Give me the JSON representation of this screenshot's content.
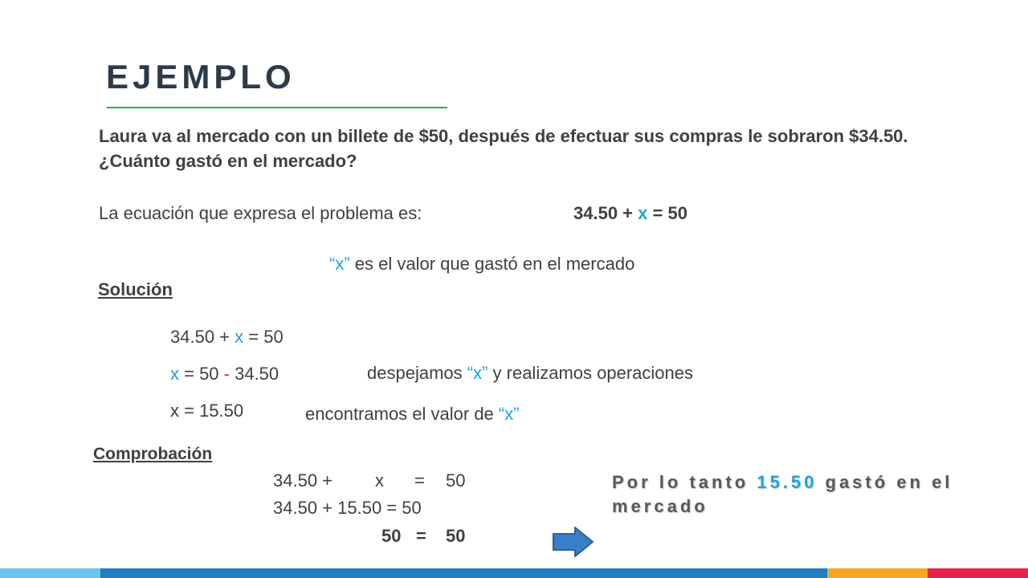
{
  "title": "EJEMPLO",
  "problem": "Laura va al mercado con un billete de $50, después de efectuar sus compras le sobraron $34.50. ¿Cuánto gastó en el mercado?",
  "equation_intro": {
    "label": "La ecuación que expresa el problema es:",
    "eq_left": "34.50 + ",
    "eq_var": "x",
    "eq_right": " = 50"
  },
  "x_note": {
    "var": "“x”",
    "text": " es el valor que gastó en el mercado"
  },
  "solucion": {
    "heading": "Solución",
    "line1": {
      "left": "34.50 + ",
      "var": "x",
      "right": " = 50"
    },
    "line2": {
      "var": "x",
      "a": " = 50 ",
      "op": "-",
      "b": " 34.50"
    },
    "line2_note": {
      "a": "despejamos ",
      "var": "“x”",
      "b": " y realizamos operaciones"
    },
    "line3": "x = 15.50",
    "line3_note": {
      "a": "encontramos el valor de ",
      "var": "“x”"
    }
  },
  "comprobacion": {
    "heading": "Comprobación",
    "row1": {
      "a": "34.50  +",
      "var": "x",
      "eq": "=",
      "b": "50"
    },
    "row2": "34.50  + 15.50  =   50",
    "row3": {
      "a": "50",
      "eq": "=",
      "b": "50"
    }
  },
  "conclusion": {
    "before": "Por lo tanto ",
    "value": "15.50",
    "after": " gastó en el mercado"
  },
  "colors": {
    "accent": "#1fa3dc",
    "title_underline": "#2aaa5a",
    "minus": "#e0242c",
    "arrow": "#3a7fc6",
    "bottom_bar": [
      "#6cc4ee",
      "#1f7fc0",
      "#f5a623",
      "#e8224f"
    ]
  },
  "icons": {
    "arrow": "right-arrow-icon"
  }
}
